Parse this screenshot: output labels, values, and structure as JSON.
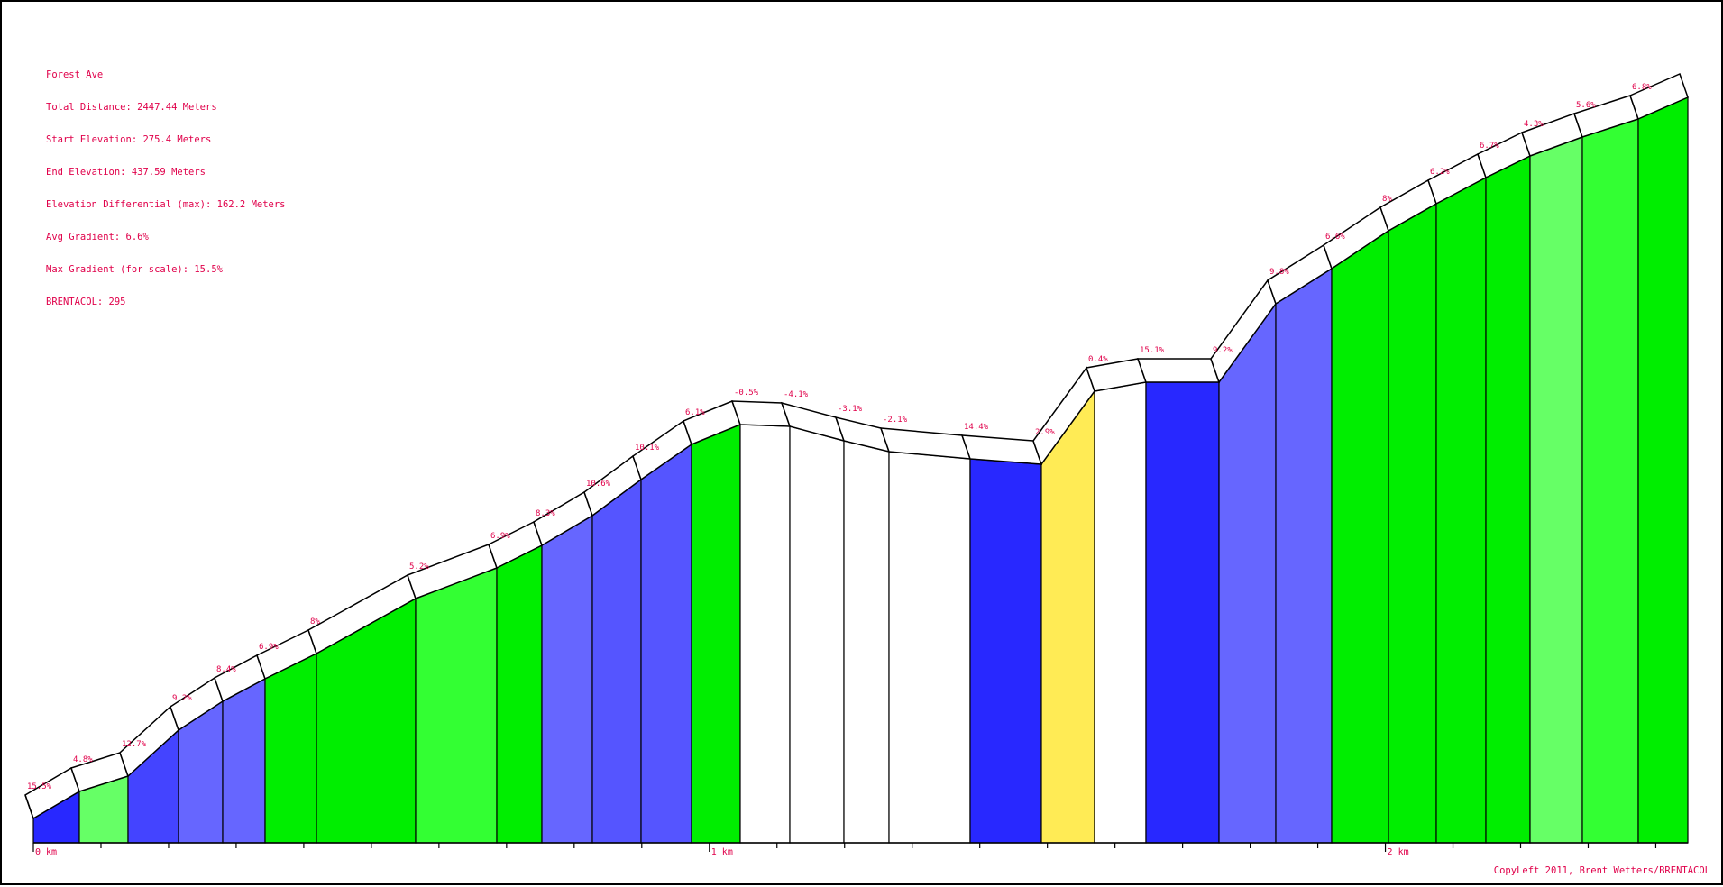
{
  "info": {
    "name": "Forest Ave",
    "total_distance": "Total Distance: 2447.44 Meters",
    "start_elevation": "Start Elevation: 275.4 Meters",
    "end_elevation": "End Elevation: 437.59 Meters",
    "elevation_differential": "Elevation Differential (max): 162.2 Meters",
    "avg_gradient": "Avg Gradient: 6.6%",
    "max_gradient": "Max Gradient (for scale): 15.5%",
    "brentacol": "BRENTACOL: 295"
  },
  "copyright": "CopyLeft 2011, Brent Wetters/BRENTACOL",
  "colors": {
    "text": "#e0004a",
    "band": "#ffffff",
    "outline": "#000000"
  },
  "chart_data": {
    "type": "area",
    "title": "Forest Ave",
    "x_unit": "km",
    "xlim": [
      0,
      2.4474
    ],
    "ylim_m": [
      275.4,
      437.59
    ],
    "x_ticks": [
      {
        "x": 0,
        "label": "0 km"
      },
      {
        "x": 1,
        "label": "1 km"
      },
      {
        "x": 2,
        "label": "2 km"
      }
    ],
    "minor_tick_step_km": 0.1,
    "segments": [
      {
        "gradient": "15.5%",
        "color": "#2828ff"
      },
      {
        "gradient": "4.8%",
        "color": "#66ff66"
      },
      {
        "gradient": "12.7%",
        "color": "#4444ff"
      },
      {
        "gradient": "9.2%",
        "color": "#6666ff"
      },
      {
        "gradient": "8.4%",
        "color": "#6666ff"
      },
      {
        "gradient": "6.9%",
        "color": "#00ee00"
      },
      {
        "gradient": "8%",
        "color": "#00ee00"
      },
      {
        "gradient": "5.2%",
        "color": "#33ff33"
      },
      {
        "gradient": "6.9%",
        "color": "#00ee00"
      },
      {
        "gradient": "8.3%",
        "color": "#6666ff"
      },
      {
        "gradient": "10.6%",
        "color": "#5555ff"
      },
      {
        "gradient": "10.1%",
        "color": "#5555ff"
      },
      {
        "gradient": "6.1%",
        "color": "#00ee00"
      },
      {
        "gradient": "-0.5%",
        "color": "#ffffff"
      },
      {
        "gradient": "-4.1%",
        "color": "#ffffff"
      },
      {
        "gradient": "-3.1%",
        "color": "#ffffff"
      },
      {
        "gradient": "-2.1%",
        "color": "#ffffff"
      },
      {
        "gradient": "14.4%",
        "color": "#2828ff"
      },
      {
        "gradient": "2.9%",
        "color": "#ffeb55"
      },
      {
        "gradient": "0.4%",
        "color": "#ffffff"
      },
      {
        "gradient": "15.1%",
        "color": "#2828ff"
      },
      {
        "gradient": "9.2%",
        "color": "#6666ff"
      },
      {
        "gradient": "9.8%",
        "color": "#6666ff"
      },
      {
        "gradient": "6.6%",
        "color": "#00ee00"
      },
      {
        "gradient": "8%",
        "color": "#00ee00"
      },
      {
        "gradient": "6.2%",
        "color": "#00ee00"
      },
      {
        "gradient": "6.7%",
        "color": "#00ee00"
      },
      {
        "gradient": "4.3%",
        "color": "#66ff66"
      },
      {
        "gradient": "5.6%",
        "color": "#33ff33"
      },
      {
        "gradient": "6.8%",
        "color": "#00ee00"
      }
    ]
  }
}
